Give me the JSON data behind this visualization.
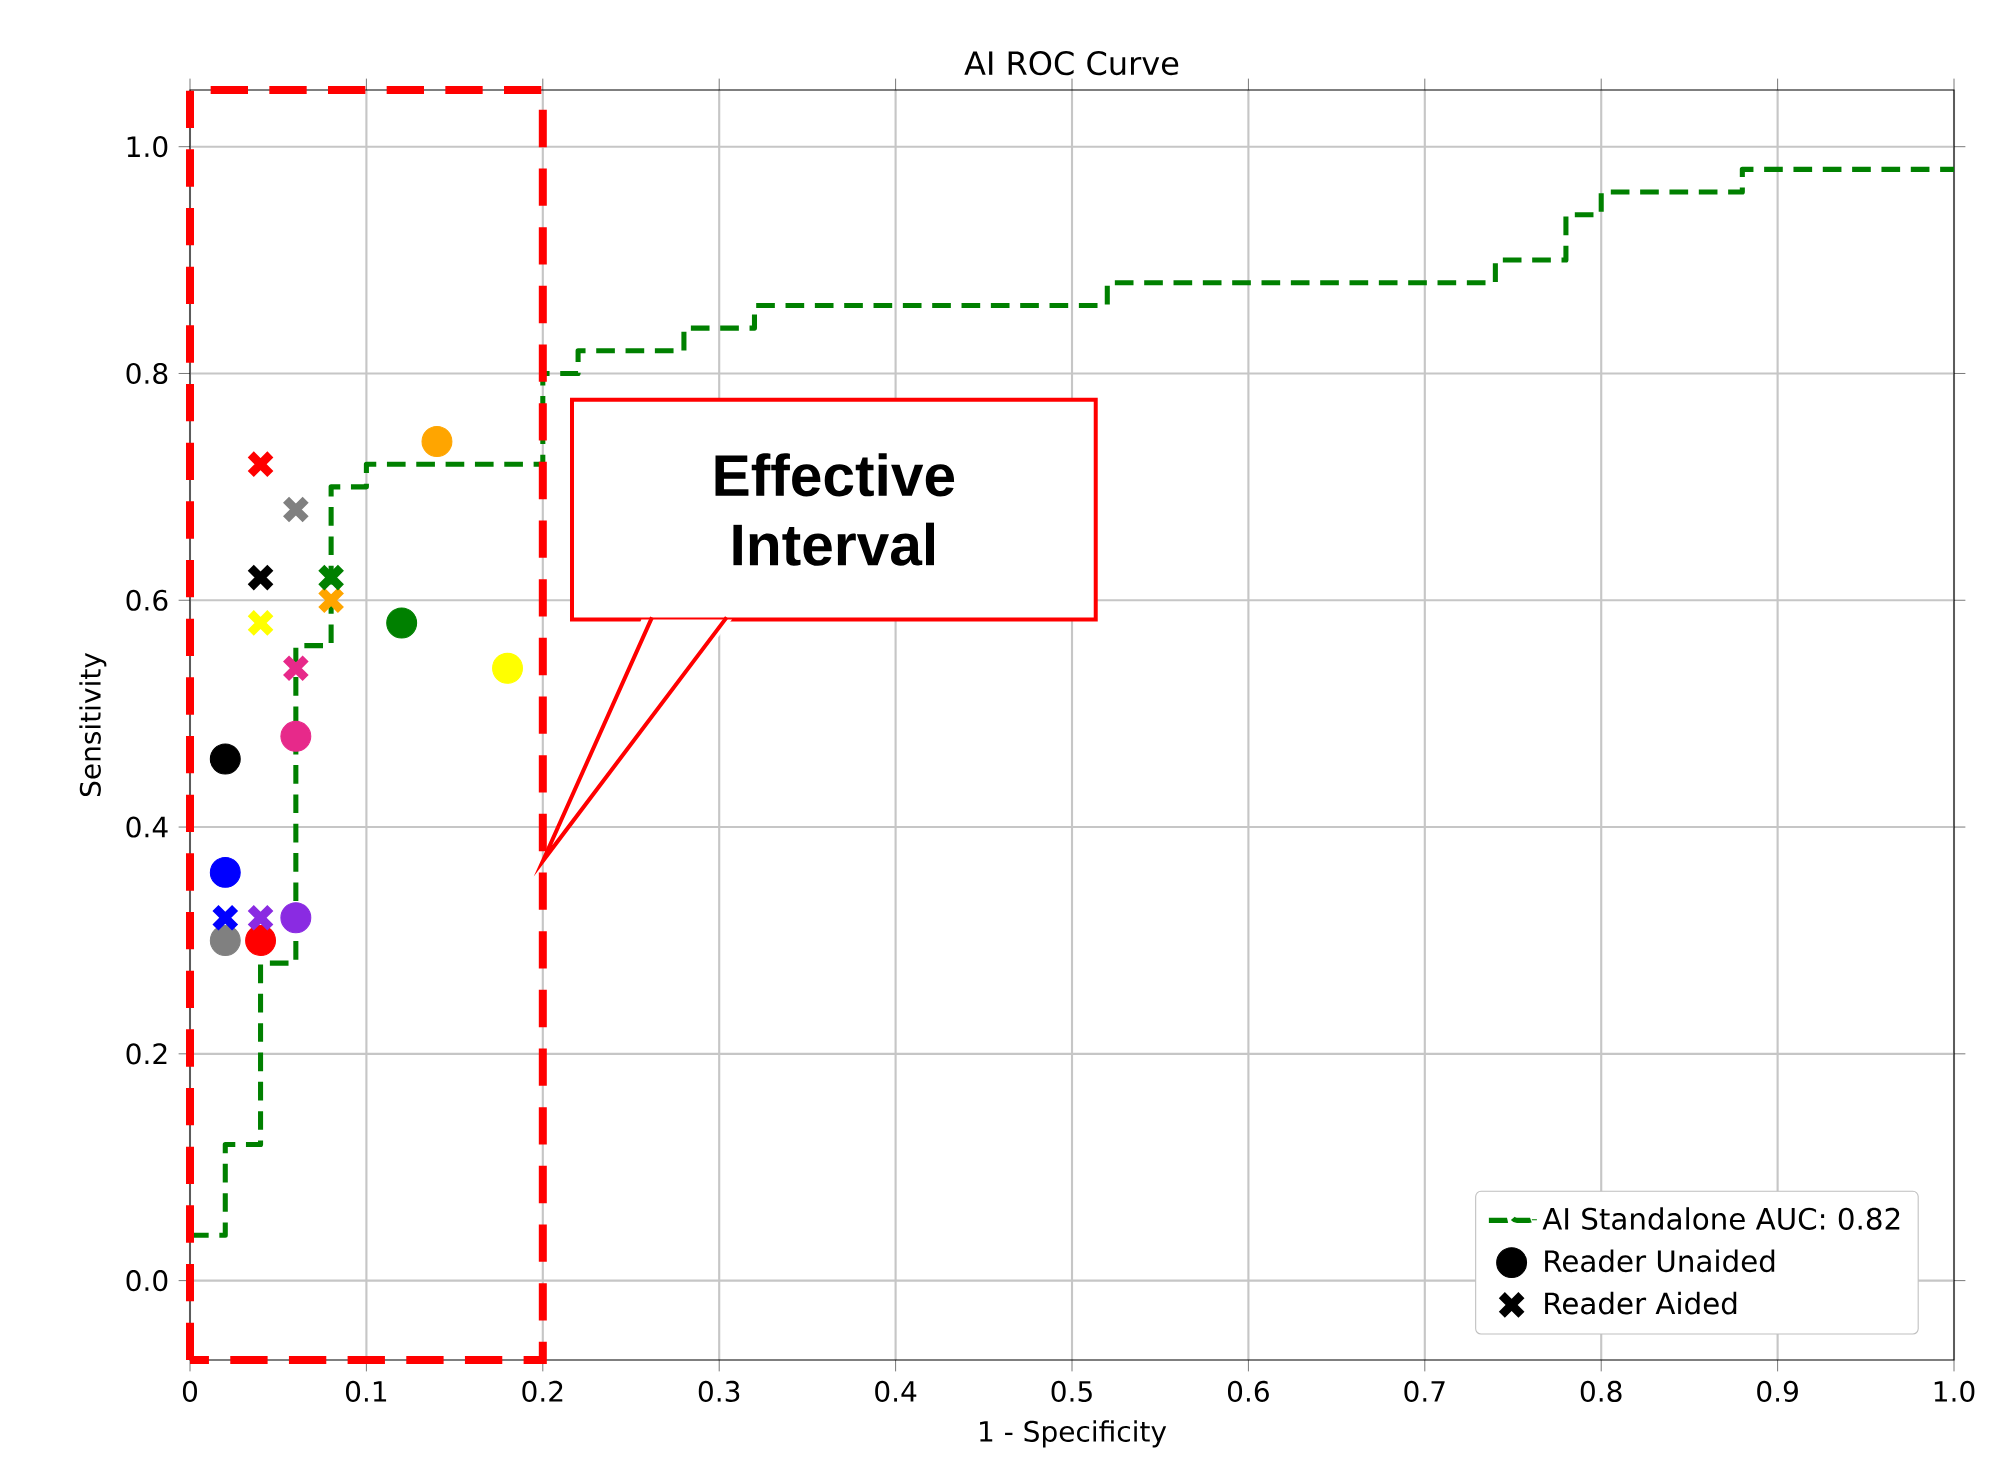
{
  "chart_data": {
    "type": "scatter",
    "title": "AI ROC Curve",
    "xlabel": "1 - Specificity",
    "ylabel": "Sensitivity",
    "xlim": [
      0,
      1
    ],
    "ylim": [
      -0.07,
      1.05
    ],
    "xticks": [
      {
        "value": 0,
        "label": "0"
      },
      0.1,
      0.2,
      0.3,
      0.4,
      0.5,
      0.6,
      0.7,
      0.8,
      0.9,
      {
        "value": 1,
        "label": "1.0"
      }
    ],
    "yticks": [
      {
        "value": 0,
        "label": "0.0"
      },
      0.2,
      0.4,
      0.6,
      0.8,
      {
        "value": 1,
        "label": "1.0"
      }
    ],
    "grid": true,
    "legend": "bottom right",
    "series": [
      {
        "name": "AI Standalone AUC: 0.82",
        "type": "step",
        "color": "#008000",
        "line_style": "dashed",
        "marker": "none",
        "x": [
          0,
          0.02,
          0.04,
          0.06,
          0.08,
          0.1,
          0.2,
          0.22,
          0.28,
          0.32,
          0.52,
          0.74,
          0.78,
          0.8,
          0.88,
          1.0
        ],
        "values": [
          0.04,
          0.12,
          0.28,
          0.56,
          0.7,
          0.72,
          0.8,
          0.82,
          0.84,
          0.86,
          0.88,
          0.9,
          0.94,
          0.96,
          0.98,
          0.98
        ]
      },
      {
        "name": "Reader Unaided",
        "marker": "circle",
        "color": "#000000",
        "x": [
          0.02,
          0.02,
          0.02,
          0.04,
          0.06,
          0.06,
          0.18,
          0.14,
          0.12
        ],
        "values": [
          0.46,
          0.36,
          0.3,
          0.3,
          0.32,
          0.48,
          0.54,
          0.74,
          0.58
        ],
        "colors": [
          "#000000",
          "#0000ff",
          "#808080",
          "#ff0000",
          "#8a2be2",
          "#e7298a",
          "#ffff00",
          "#ffa500",
          "#008000"
        ]
      },
      {
        "name": "Reader Aided",
        "marker": "cross",
        "color": "#000000",
        "x": [
          0.04,
          0.02,
          0.06,
          0.04,
          0.04,
          0.06,
          0.04,
          0.08,
          0.08
        ],
        "values": [
          0.62,
          0.32,
          0.68,
          0.72,
          0.32,
          0.54,
          0.58,
          0.6,
          0.62
        ],
        "colors": [
          "#000000",
          "#0000ff",
          "#808080",
          "#ff0000",
          "#8a2be2",
          "#e7298a",
          "#ffff00",
          "#ffa500",
          "#008000"
        ]
      }
    ],
    "annotations": [
      "Effective Interval"
    ]
  }
}
